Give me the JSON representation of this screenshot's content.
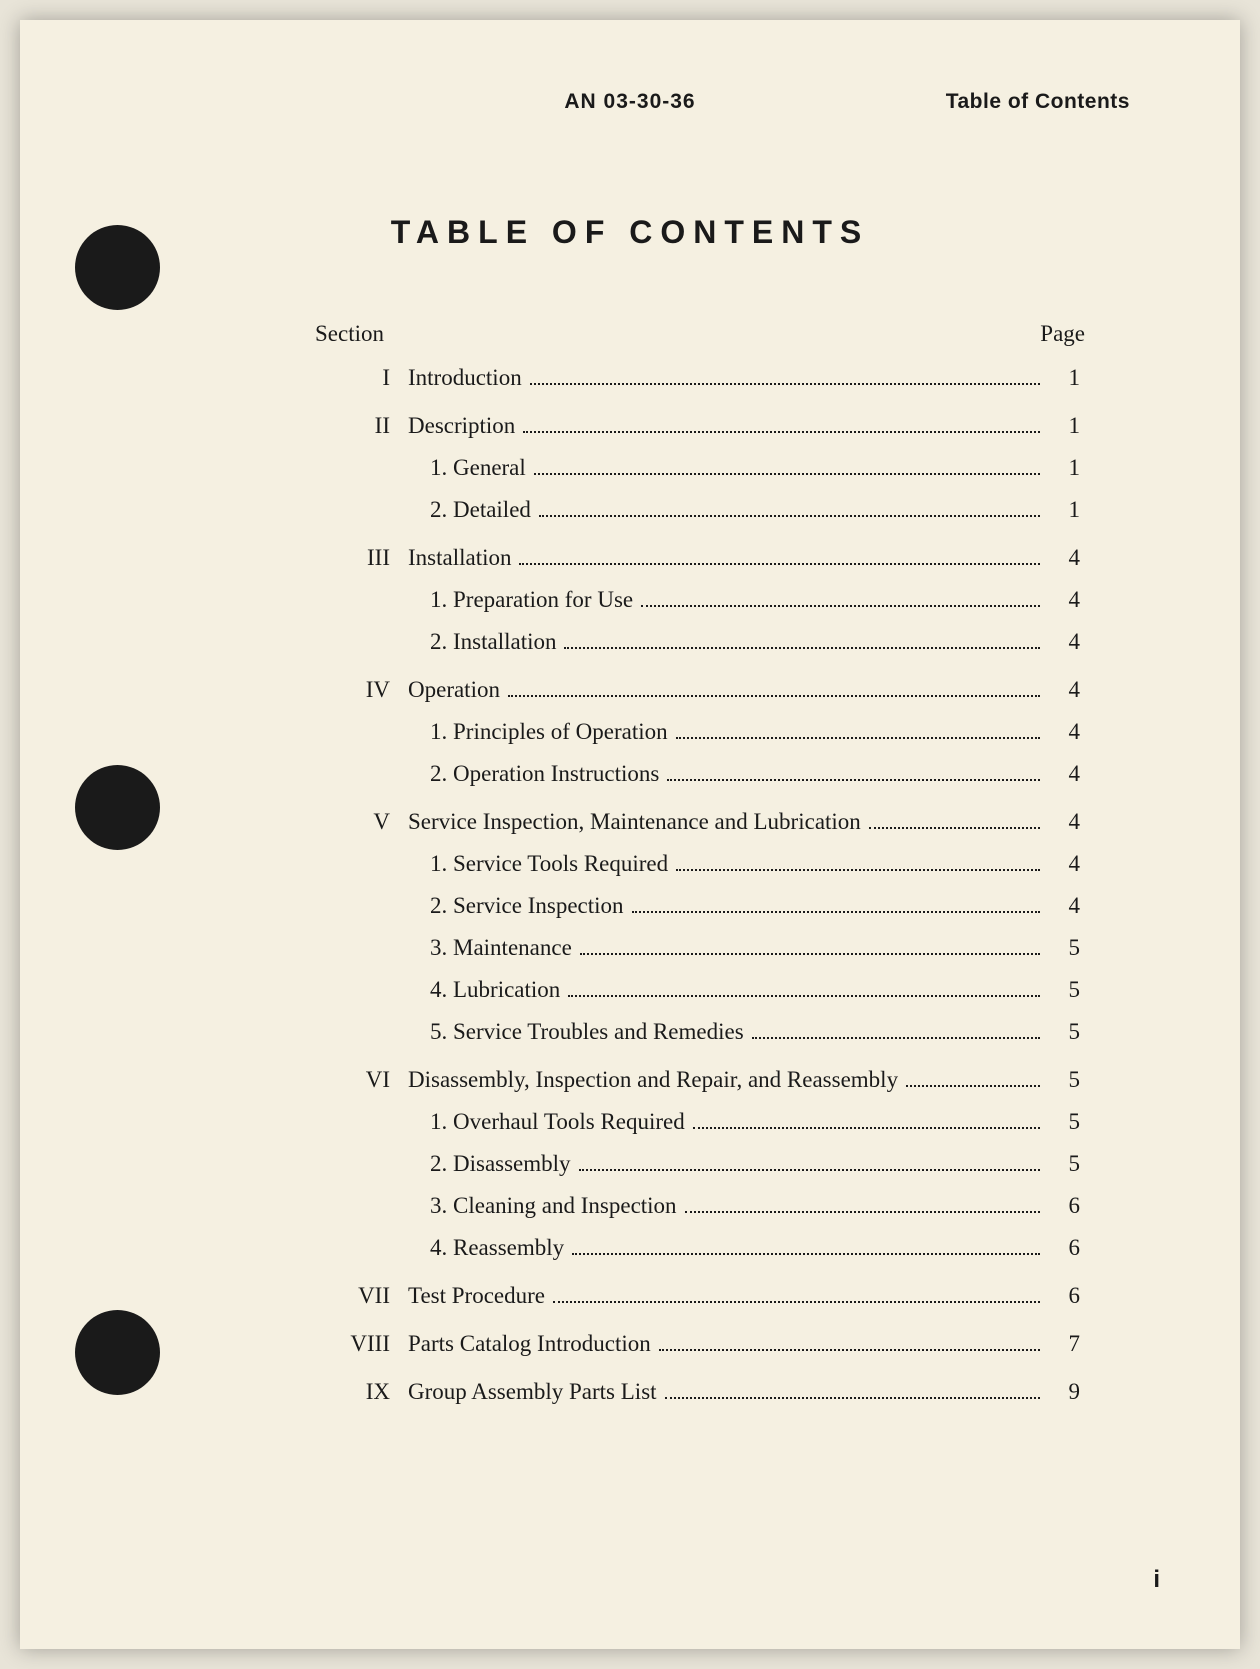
{
  "header": {
    "doc_number": "AN 03-30-36",
    "header_label": "Table of Contents"
  },
  "title": "TABLE OF CONTENTS",
  "toc_headers": {
    "section": "Section",
    "page": "Page"
  },
  "sections": [
    {
      "roman": "I",
      "title": "Introduction",
      "page": "1",
      "subs": []
    },
    {
      "roman": "II",
      "title": "Description",
      "page": "1",
      "subs": [
        {
          "num": "1.",
          "title": "General",
          "page": "1"
        },
        {
          "num": "2.",
          "title": "Detailed",
          "page": "1"
        }
      ]
    },
    {
      "roman": "III",
      "title": "Installation",
      "page": "4",
      "subs": [
        {
          "num": "1.",
          "title": "Preparation for Use",
          "page": "4"
        },
        {
          "num": "2.",
          "title": "Installation",
          "page": "4"
        }
      ]
    },
    {
      "roman": "IV",
      "title": "Operation",
      "page": "4",
      "subs": [
        {
          "num": "1.",
          "title": "Principles of Operation",
          "page": "4"
        },
        {
          "num": "2.",
          "title": "Operation Instructions",
          "page": "4"
        }
      ]
    },
    {
      "roman": "V",
      "title": "Service Inspection, Maintenance and Lubrication",
      "page": "4",
      "subs": [
        {
          "num": "1.",
          "title": "Service Tools Required",
          "page": "4"
        },
        {
          "num": "2.",
          "title": "Service Inspection",
          "page": "4"
        },
        {
          "num": "3.",
          "title": "Maintenance",
          "page": "5"
        },
        {
          "num": "4.",
          "title": "Lubrication",
          "page": "5"
        },
        {
          "num": "5.",
          "title": "Service Troubles and Remedies",
          "page": "5"
        }
      ]
    },
    {
      "roman": "VI",
      "title": "Disassembly, Inspection and Repair, and Reassembly",
      "page": "5",
      "subs": [
        {
          "num": "1.",
          "title": "Overhaul Tools Required",
          "page": "5"
        },
        {
          "num": "2.",
          "title": "Disassembly",
          "page": "5"
        },
        {
          "num": "3.",
          "title": "Cleaning and Inspection",
          "page": "6"
        },
        {
          "num": "4.",
          "title": "Reassembly",
          "page": "6"
        }
      ]
    },
    {
      "roman": "VII",
      "title": "Test Procedure",
      "page": "6",
      "subs": []
    },
    {
      "roman": "VIII",
      "title": "Parts Catalog Introduction",
      "page": "7",
      "subs": []
    },
    {
      "roman": "IX",
      "title": "Group Assembly Parts List",
      "page": "9",
      "subs": []
    }
  ],
  "footer_page": "i",
  "colors": {
    "page_bg": "#f5f0e1",
    "body_bg": "#e8e4d8",
    "text": "#1a1a1a",
    "hole": "#1a1a1a"
  },
  "typography": {
    "serif": "Times New Roman, Times, serif",
    "sans": "Arial, Helvetica, sans-serif",
    "doc_number_size": 21,
    "title_size": 32,
    "body_size": 23,
    "footer_size": 24
  }
}
